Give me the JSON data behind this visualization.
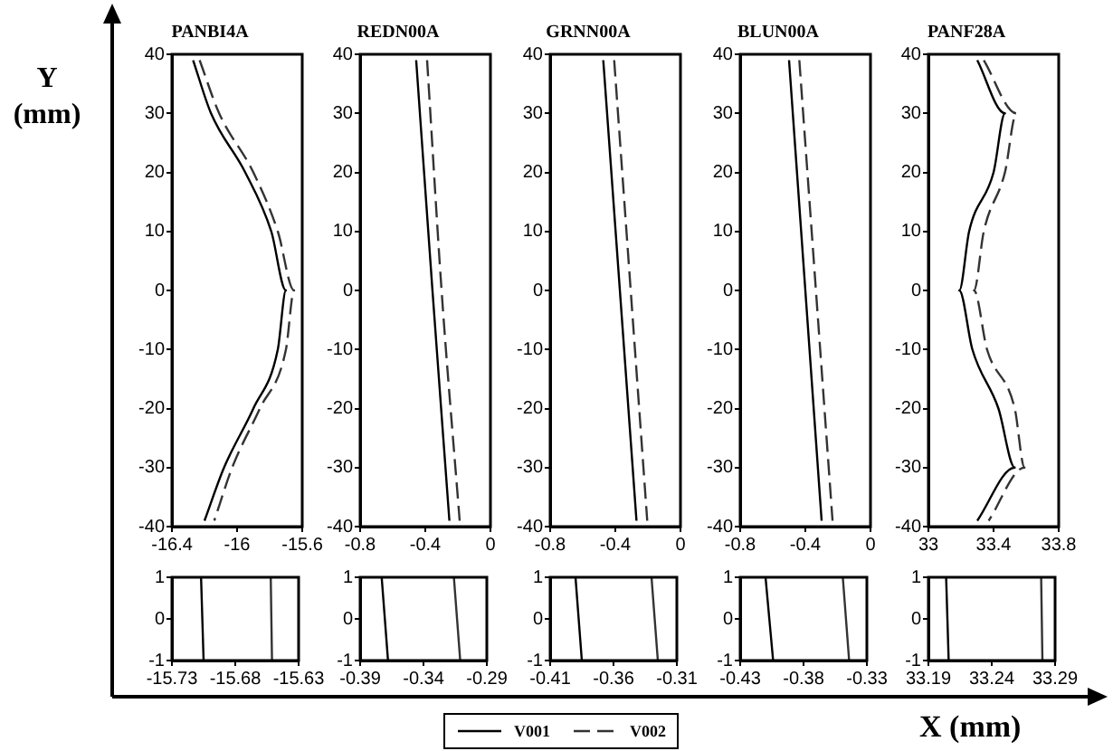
{
  "chart_data": [
    {
      "type": "line",
      "title": "PANBI4A",
      "ylabel": "Y (mm)",
      "legend": "bottom",
      "xlim": [
        -16.4,
        -15.6
      ],
      "xticks": [
        -16.4,
        -16,
        -15.6
      ],
      "ylim": [
        -40,
        40
      ],
      "yticks": [
        -40,
        -30,
        -20,
        -10,
        0,
        10,
        20,
        30,
        40
      ],
      "series": [
        {
          "name": "V001",
          "color": "#000000",
          "line_style": "solid",
          "x": [
            -16.27,
            -16.16,
            -15.95,
            -15.79,
            -15.7,
            -15.75,
            -15.9,
            -16.08,
            -16.2
          ],
          "values": [
            39,
            30,
            20,
            10,
            0,
            -10,
            -20,
            -30,
            -39
          ]
        },
        {
          "name": "V002",
          "color": "#333333",
          "line_style": "dashed",
          "x": [
            -16.23,
            -16.11,
            -15.9,
            -15.75,
            -15.65,
            -15.7,
            -15.86,
            -16.03,
            -16.14
          ],
          "values": [
            39,
            30,
            20,
            10,
            0,
            -10,
            -20,
            -30,
            -39
          ]
        }
      ]
    },
    {
      "type": "line",
      "title": "REDN00A",
      "xlim": [
        -0.8,
        0
      ],
      "xticks": [
        -0.8,
        -0.4,
        0
      ],
      "ylim": [
        -40,
        40
      ],
      "yticks": [
        -40,
        -30,
        -20,
        -10,
        0,
        10,
        20,
        30,
        40
      ],
      "series": [
        {
          "color": "#000000",
          "line_style": "solid",
          "x": [
            -0.456,
            -0.356,
            -0.252
          ],
          "values": [
            39,
            0,
            -39
          ]
        },
        {
          "color": "#333333",
          "line_style": "dashed",
          "x": [
            -0.389,
            -0.3,
            -0.189
          ],
          "values": [
            39,
            0,
            -39
          ]
        }
      ]
    },
    {
      "type": "line",
      "title": "GRNN00A",
      "xlim": [
        -0.8,
        0
      ],
      "xticks": [
        -0.8,
        -0.4,
        0
      ],
      "ylim": [
        -40,
        40
      ],
      "yticks": [
        -40,
        -30,
        -20,
        -10,
        0,
        10,
        20,
        30,
        40
      ],
      "series": [
        {
          "color": "#000000",
          "line_style": "solid",
          "x": [
            -0.474,
            -0.27
          ],
          "values": [
            39,
            -39
          ]
        },
        {
          "color": "#333333",
          "line_style": "dashed",
          "x": [
            -0.407,
            -0.204
          ],
          "values": [
            39,
            -39
          ]
        }
      ]
    },
    {
      "type": "line",
      "title": "BLUN00A",
      "xlim": [
        -0.8,
        0
      ],
      "xticks": [
        -0.8,
        -0.4,
        0
      ],
      "ylim": [
        -40,
        40
      ],
      "yticks": [
        -40,
        -30,
        -20,
        -10,
        0,
        10,
        20,
        30,
        40
      ],
      "series": [
        {
          "color": "#000000",
          "line_style": "solid",
          "x": [
            -0.5,
            -0.3
          ],
          "values": [
            39,
            -39
          ]
        },
        {
          "color": "#333333",
          "line_style": "dashed",
          "x": [
            -0.437,
            -0.233
          ],
          "values": [
            39,
            -39
          ]
        }
      ]
    },
    {
      "type": "line",
      "title": "PANF28A",
      "xlim": [
        33,
        33.8
      ],
      "xticks": [
        33,
        33.4,
        33.8
      ],
      "ylim": [
        -40,
        40
      ],
      "yticks": [
        -40,
        -30,
        -20,
        -10,
        0,
        10,
        20,
        30,
        40
      ],
      "series": [
        {
          "color": "#000000",
          "line_style": "solid",
          "x": [
            33.3,
            33.47,
            33.4,
            33.25,
            33.19,
            33.27,
            33.43,
            33.53,
            33.3
          ],
          "values": [
            39,
            30,
            20,
            10,
            0,
            -10,
            -20,
            -30,
            -39
          ]
        },
        {
          "color": "#333333",
          "line_style": "dashed",
          "x": [
            33.34,
            33.54,
            33.47,
            33.34,
            33.28,
            33.36,
            33.53,
            33.59,
            33.37
          ],
          "values": [
            39,
            30,
            20,
            10,
            0,
            -10,
            -20,
            -30,
            -39
          ]
        }
      ]
    },
    {
      "type": "line",
      "xlim": [
        -15.73,
        -15.63
      ],
      "xticks": [
        -15.73,
        -15.68,
        -15.63
      ],
      "ylim": [
        -1,
        1
      ],
      "yticks": [
        -1,
        0,
        1
      ],
      "series": [
        {
          "color": "#000000",
          "line_style": "solid",
          "x": [
            -15.707,
            -15.705
          ],
          "values": [
            1,
            -1
          ]
        },
        {
          "color": "#333333",
          "line_style": "solid",
          "x": [
            -15.652,
            -15.651
          ],
          "values": [
            1,
            -1
          ]
        }
      ]
    },
    {
      "type": "line",
      "xlim": [
        -0.39,
        -0.29
      ],
      "xticks": [
        -0.39,
        -0.34,
        -0.29
      ],
      "ylim": [
        -1,
        1
      ],
      "yticks": [
        -1,
        0,
        1
      ],
      "series": [
        {
          "color": "#000000",
          "line_style": "solid",
          "x": [
            -0.373,
            -0.368
          ],
          "values": [
            1,
            -1
          ]
        },
        {
          "color": "#333333",
          "line_style": "solid",
          "x": [
            -0.316,
            -0.311
          ],
          "values": [
            1,
            -1
          ]
        }
      ]
    },
    {
      "type": "line",
      "xlim": [
        -0.41,
        -0.31
      ],
      "xticks": [
        -0.41,
        -0.36,
        -0.31
      ],
      "ylim": [
        -1,
        1
      ],
      "yticks": [
        -1,
        0,
        1
      ],
      "series": [
        {
          "color": "#000000",
          "line_style": "solid",
          "x": [
            -0.39,
            -0.385
          ],
          "values": [
            1,
            -1
          ]
        },
        {
          "color": "#333333",
          "line_style": "solid",
          "x": [
            -0.33,
            -0.325
          ],
          "values": [
            1,
            -1
          ]
        }
      ]
    },
    {
      "type": "line",
      "xlim": [
        -0.43,
        -0.33
      ],
      "xticks": [
        -0.43,
        -0.38,
        -0.33
      ],
      "ylim": [
        -1,
        1
      ],
      "yticks": [
        -1,
        0,
        1
      ],
      "series": [
        {
          "color": "#000000",
          "line_style": "solid",
          "x": [
            -0.41,
            -0.404
          ],
          "values": [
            1,
            -1
          ]
        },
        {
          "color": "#333333",
          "line_style": "solid",
          "x": [
            -0.349,
            -0.344
          ],
          "values": [
            1,
            -1
          ]
        }
      ]
    },
    {
      "type": "line",
      "xlabel": "X (mm)",
      "xlim": [
        33.19,
        33.29
      ],
      "xticks": [
        33.19,
        33.24,
        33.29
      ],
      "ylim": [
        -1,
        1
      ],
      "yticks": [
        -1,
        0,
        1
      ],
      "series": [
        {
          "color": "#000000",
          "line_style": "solid",
          "x": [
            33.204,
            33.206
          ],
          "values": [
            1,
            -1
          ]
        },
        {
          "color": "#333333",
          "line_style": "solid",
          "x": [
            33.279,
            33.28
          ],
          "values": [
            1,
            -1
          ]
        }
      ]
    }
  ]
}
